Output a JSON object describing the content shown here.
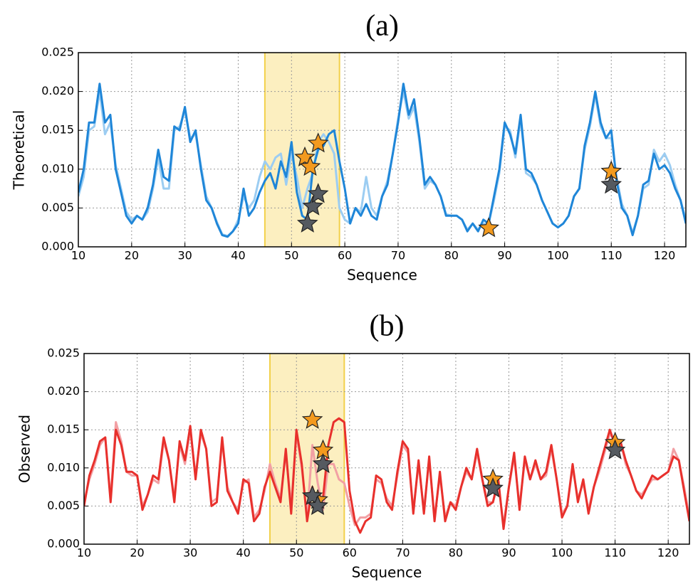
{
  "chart_data": [
    {
      "type": "line",
      "title": "(a)",
      "xlabel": "Sequence",
      "ylabel": "Theoretical",
      "x": [
        10,
        11,
        12,
        13,
        14,
        15,
        16,
        17,
        18,
        19,
        20,
        21,
        22,
        23,
        24,
        25,
        26,
        27,
        28,
        29,
        30,
        31,
        32,
        33,
        34,
        35,
        36,
        37,
        38,
        39,
        40,
        41,
        42,
        43,
        44,
        45,
        46,
        47,
        48,
        49,
        50,
        51,
        52,
        53,
        54,
        55,
        56,
        57,
        58,
        59,
        60,
        61,
        62,
        63,
        64,
        65,
        66,
        67,
        68,
        69,
        70,
        71,
        72,
        73,
        74,
        75,
        76,
        77,
        78,
        79,
        80,
        81,
        82,
        83,
        84,
        85,
        86,
        87,
        88,
        89,
        90,
        91,
        92,
        93,
        94,
        95,
        96,
        97,
        98,
        99,
        100,
        101,
        102,
        103,
        104,
        105,
        106,
        107,
        108,
        109,
        110,
        111,
        112,
        113,
        114,
        115,
        116,
        117,
        118,
        119,
        120,
        121,
        122,
        123,
        124
      ],
      "xlim": [
        10,
        124
      ],
      "xticks": [
        10,
        20,
        30,
        40,
        50,
        60,
        70,
        80,
        90,
        100,
        110,
        120
      ],
      "ylim": [
        0,
        0.025
      ],
      "yticks": [
        {
          "value": 0,
          "label": "0.000"
        },
        {
          "value": 0.005,
          "label": "0.005"
        },
        {
          "value": 0.01,
          "label": "0.010"
        },
        {
          "value": 0.015,
          "label": "0.015"
        },
        {
          "value": 0.02,
          "label": "0.020"
        },
        {
          "value": 0.025,
          "label": "0.025"
        }
      ],
      "grid": true,
      "highlight": {
        "range": [
          45,
          59
        ],
        "color": "#fcefc0",
        "edge_color": "#f2d04a"
      },
      "series": [
        {
          "color": "#9ccdf2",
          "values": [
            0.0065,
            0.009,
            0.015,
            0.0155,
            0.02,
            0.0145,
            0.016,
            0.0105,
            0.0075,
            0.0045,
            0.0035,
            0.004,
            0.0035,
            0.0045,
            0.0075,
            0.0115,
            0.0075,
            0.0075,
            0.015,
            0.0155,
            0.0175,
            0.014,
            0.0145,
            0.0105,
            0.0065,
            0.005,
            0.0032,
            0.0016,
            0.0014,
            0.002,
            0.0035,
            0.0065,
            0.005,
            0.006,
            0.009,
            0.011,
            0.01,
            0.0115,
            0.012,
            0.008,
            0.012,
            0.009,
            0.005,
            0.0075,
            0.0095,
            0.0135,
            0.0145,
            0.0135,
            0.012,
            0.005,
            0.0035,
            0.003,
            0.005,
            0.0045,
            0.009,
            0.005,
            0.004,
            0.0065,
            0.0085,
            0.012,
            0.0165,
            0.02,
            0.0165,
            0.018,
            0.0135,
            0.0075,
            0.0085,
            0.008,
            0.0065,
            0.0042,
            0.004,
            0.004,
            0.0035,
            0.0022,
            0.003,
            0.0022,
            0.003,
            0.003,
            0.006,
            0.0095,
            0.0155,
            0.015,
            0.0115,
            0.0165,
            0.0095,
            0.009,
            0.008,
            0.006,
            0.0045,
            0.003,
            0.0025,
            0.003,
            0.004,
            0.0065,
            0.0075,
            0.0125,
            0.0155,
            0.0195,
            0.0155,
            0.014,
            0.014,
            0.009,
            0.0055,
            0.004,
            0.0018,
            0.004,
            0.0075,
            0.008,
            0.0125,
            0.011,
            0.012,
            0.0105,
            0.008,
            0.006,
            0.0035
          ]
        },
        {
          "color": "#1f86d8",
          "values": [
            0.007,
            0.01,
            0.016,
            0.016,
            0.021,
            0.016,
            0.017,
            0.01,
            0.007,
            0.004,
            0.003,
            0.004,
            0.0035,
            0.005,
            0.008,
            0.0125,
            0.009,
            0.0085,
            0.0155,
            0.015,
            0.018,
            0.0135,
            0.015,
            0.01,
            0.006,
            0.005,
            0.003,
            0.0015,
            0.0013,
            0.002,
            0.003,
            0.0075,
            0.004,
            0.005,
            0.007,
            0.0085,
            0.0095,
            0.0075,
            0.011,
            0.009,
            0.0135,
            0.007,
            0.004,
            0.0035,
            0.01,
            0.0125,
            0.013,
            0.0145,
            0.015,
            0.011,
            0.0075,
            0.003,
            0.005,
            0.004,
            0.0055,
            0.004,
            0.0035,
            0.0065,
            0.008,
            0.012,
            0.016,
            0.021,
            0.017,
            0.019,
            0.014,
            0.008,
            0.009,
            0.008,
            0.0065,
            0.004,
            0.004,
            0.004,
            0.0035,
            0.002,
            0.003,
            0.002,
            0.0035,
            0.003,
            0.0065,
            0.01,
            0.016,
            0.0145,
            0.012,
            0.017,
            0.01,
            0.0095,
            0.008,
            0.006,
            0.0045,
            0.003,
            0.0025,
            0.003,
            0.004,
            0.0065,
            0.0075,
            0.013,
            0.016,
            0.02,
            0.016,
            0.014,
            0.015,
            0.0085,
            0.005,
            0.004,
            0.0015,
            0.004,
            0.008,
            0.0085,
            0.012,
            0.01,
            0.0105,
            0.0095,
            0.0075,
            0.006,
            0.003
          ]
        }
      ],
      "markers": [
        {
          "shape": "star",
          "color": "#f39a1e",
          "x": [
            52.5,
            53.5,
            55,
            87,
            110
          ],
          "y": [
            0.0115,
            0.0103,
            0.0133,
            0.0024,
            0.0097
          ]
        },
        {
          "shape": "star",
          "color": "#555a60",
          "x": [
            53,
            54,
            55,
            110
          ],
          "y": [
            0.003,
            0.0052,
            0.0068,
            0.008
          ]
        }
      ]
    },
    {
      "type": "line",
      "title": "(b)",
      "xlabel": "Sequence",
      "ylabel": "Observed",
      "x": [
        10,
        11,
        12,
        13,
        14,
        15,
        16,
        17,
        18,
        19,
        20,
        21,
        22,
        23,
        24,
        25,
        26,
        27,
        28,
        29,
        30,
        31,
        32,
        33,
        34,
        35,
        36,
        37,
        38,
        39,
        40,
        41,
        42,
        43,
        44,
        45,
        46,
        47,
        48,
        49,
        50,
        51,
        52,
        53,
        54,
        55,
        56,
        57,
        58,
        59,
        60,
        61,
        62,
        63,
        64,
        65,
        66,
        67,
        68,
        69,
        70,
        71,
        72,
        73,
        74,
        75,
        76,
        77,
        78,
        79,
        80,
        81,
        82,
        83,
        84,
        85,
        86,
        87,
        88,
        89,
        90,
        91,
        92,
        93,
        94,
        95,
        96,
        97,
        98,
        99,
        100,
        101,
        102,
        103,
        104,
        105,
        106,
        107,
        108,
        109,
        110,
        111,
        112,
        113,
        114,
        115,
        116,
        117,
        118,
        119,
        120,
        121,
        122,
        123,
        124
      ],
      "xlim": [
        10,
        124
      ],
      "xticks": [
        10,
        20,
        30,
        40,
        50,
        60,
        70,
        80,
        90,
        100,
        110,
        120
      ],
      "ylim": [
        0,
        0.025
      ],
      "yticks": [
        {
          "value": 0,
          "label": "0.000"
        },
        {
          "value": 0.005,
          "label": "0.005"
        },
        {
          "value": 0.01,
          "label": "0.010"
        },
        {
          "value": 0.015,
          "label": "0.015"
        },
        {
          "value": 0.02,
          "label": "0.020"
        },
        {
          "value": 0.025,
          "label": "0.025"
        }
      ],
      "grid": true,
      "highlight": {
        "range": [
          45,
          59
        ],
        "color": "#fcefc0",
        "edge_color": "#f2d04a"
      },
      "series": [
        {
          "color": "#f2a0a4",
          "values": [
            0.0055,
            0.0085,
            0.0105,
            0.013,
            0.014,
            0.006,
            0.016,
            0.0135,
            0.0095,
            0.009,
            0.009,
            0.005,
            0.0065,
            0.0085,
            0.008,
            0.0135,
            0.011,
            0.006,
            0.013,
            0.0105,
            0.015,
            0.009,
            0.0145,
            0.0125,
            0.0055,
            0.006,
            0.0135,
            0.0075,
            0.0055,
            0.0045,
            0.008,
            0.0085,
            0.0035,
            0.0045,
            0.007,
            0.0105,
            0.008,
            0.006,
            0.012,
            0.005,
            0.0145,
            0.01,
            0.0035,
            0.013,
            0.008,
            0.0045,
            0.0105,
            0.0105,
            0.0085,
            0.008,
            0.005,
            0.0025,
            0.0035,
            0.0035,
            0.004,
            0.0085,
            0.008,
            0.006,
            0.005,
            0.009,
            0.013,
            0.012,
            0.0045,
            0.0105,
            0.0045,
            0.011,
            0.0035,
            0.009,
            0.0035,
            0.0055,
            0.005,
            0.0075,
            0.0095,
            0.0085,
            0.012,
            0.0085,
            0.0055,
            0.0055,
            0.008,
            0.0025,
            0.0075,
            0.0115,
            0.005,
            0.011,
            0.0085,
            0.0105,
            0.0085,
            0.009,
            0.0125,
            0.0085,
            0.004,
            0.005,
            0.01,
            0.006,
            0.008,
            0.0045,
            0.0075,
            0.0095,
            0.012,
            0.0145,
            0.0135,
            0.0135,
            0.0105,
            0.009,
            0.007,
            0.0065,
            0.0075,
            0.0085,
            0.0085,
            0.009,
            0.0095,
            0.0125,
            0.011,
            0.0075,
            0.0035
          ]
        },
        {
          "color": "#e8302c",
          "values": [
            0.005,
            0.009,
            0.011,
            0.0135,
            0.014,
            0.0055,
            0.015,
            0.013,
            0.0095,
            0.0095,
            0.009,
            0.0045,
            0.0065,
            0.009,
            0.0085,
            0.014,
            0.011,
            0.0055,
            0.0135,
            0.011,
            0.0155,
            0.0085,
            0.015,
            0.0125,
            0.005,
            0.0055,
            0.014,
            0.007,
            0.0055,
            0.004,
            0.0085,
            0.008,
            0.003,
            0.004,
            0.0075,
            0.0095,
            0.0075,
            0.0055,
            0.0125,
            0.004,
            0.015,
            0.0105,
            0.003,
            0.0075,
            0.0045,
            0.006,
            0.013,
            0.016,
            0.0165,
            0.016,
            0.007,
            0.003,
            0.0015,
            0.003,
            0.0035,
            0.009,
            0.0085,
            0.0055,
            0.0045,
            0.0095,
            0.0135,
            0.0125,
            0.004,
            0.011,
            0.004,
            0.0115,
            0.003,
            0.0095,
            0.003,
            0.0055,
            0.0045,
            0.0075,
            0.01,
            0.0085,
            0.0125,
            0.0085,
            0.005,
            0.0055,
            0.0085,
            0.002,
            0.0075,
            0.012,
            0.0045,
            0.0115,
            0.0085,
            0.011,
            0.0085,
            0.0095,
            0.013,
            0.0085,
            0.0035,
            0.005,
            0.0105,
            0.0055,
            0.0085,
            0.004,
            0.0075,
            0.01,
            0.0125,
            0.015,
            0.013,
            0.0135,
            0.011,
            0.009,
            0.007,
            0.006,
            0.0075,
            0.009,
            0.0085,
            0.009,
            0.0095,
            0.0115,
            0.011,
            0.007,
            0.003
          ]
        }
      ],
      "markers": [
        {
          "shape": "star",
          "color": "#f39a1e",
          "x": [
            53,
            55,
            54,
            87,
            110
          ],
          "y": [
            0.0163,
            0.0123,
            0.0058,
            0.0085,
            0.0133
          ]
        },
        {
          "shape": "star",
          "color": "#555a60",
          "x": [
            53,
            54,
            55,
            87,
            110
          ],
          "y": [
            0.0063,
            0.005,
            0.0105,
            0.0073,
            0.0123
          ]
        }
      ]
    }
  ]
}
